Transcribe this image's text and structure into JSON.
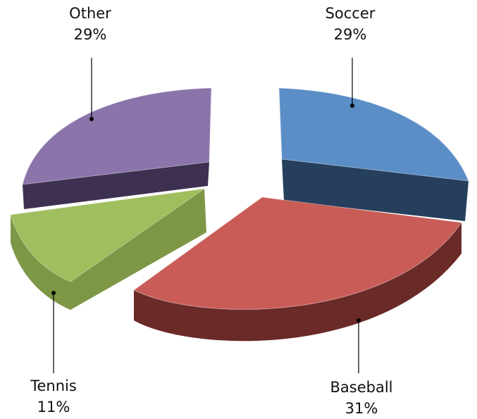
{
  "chart_data": {
    "type": "pie",
    "style": "3d-exploded",
    "slices": [
      {
        "label": "Soccer",
        "value": 29,
        "percent_label": "29%",
        "color": "#5b8ec7",
        "side_color": "#253f5c"
      },
      {
        "label": "Baseball",
        "value": 31,
        "percent_label": "31%",
        "color": "#c95c57",
        "side_color": "#6a2a28"
      },
      {
        "label": "Tennis",
        "value": 11,
        "percent_label": "11%",
        "color": "#9fbe5e",
        "side_color": "#7e9746"
      },
      {
        "label": "Other",
        "value": 29,
        "percent_label": "29%",
        "color": "#8a74aa",
        "side_color": "#3d3050"
      }
    ],
    "legend": "none",
    "data_labels": "outside-with-leader-lines"
  }
}
